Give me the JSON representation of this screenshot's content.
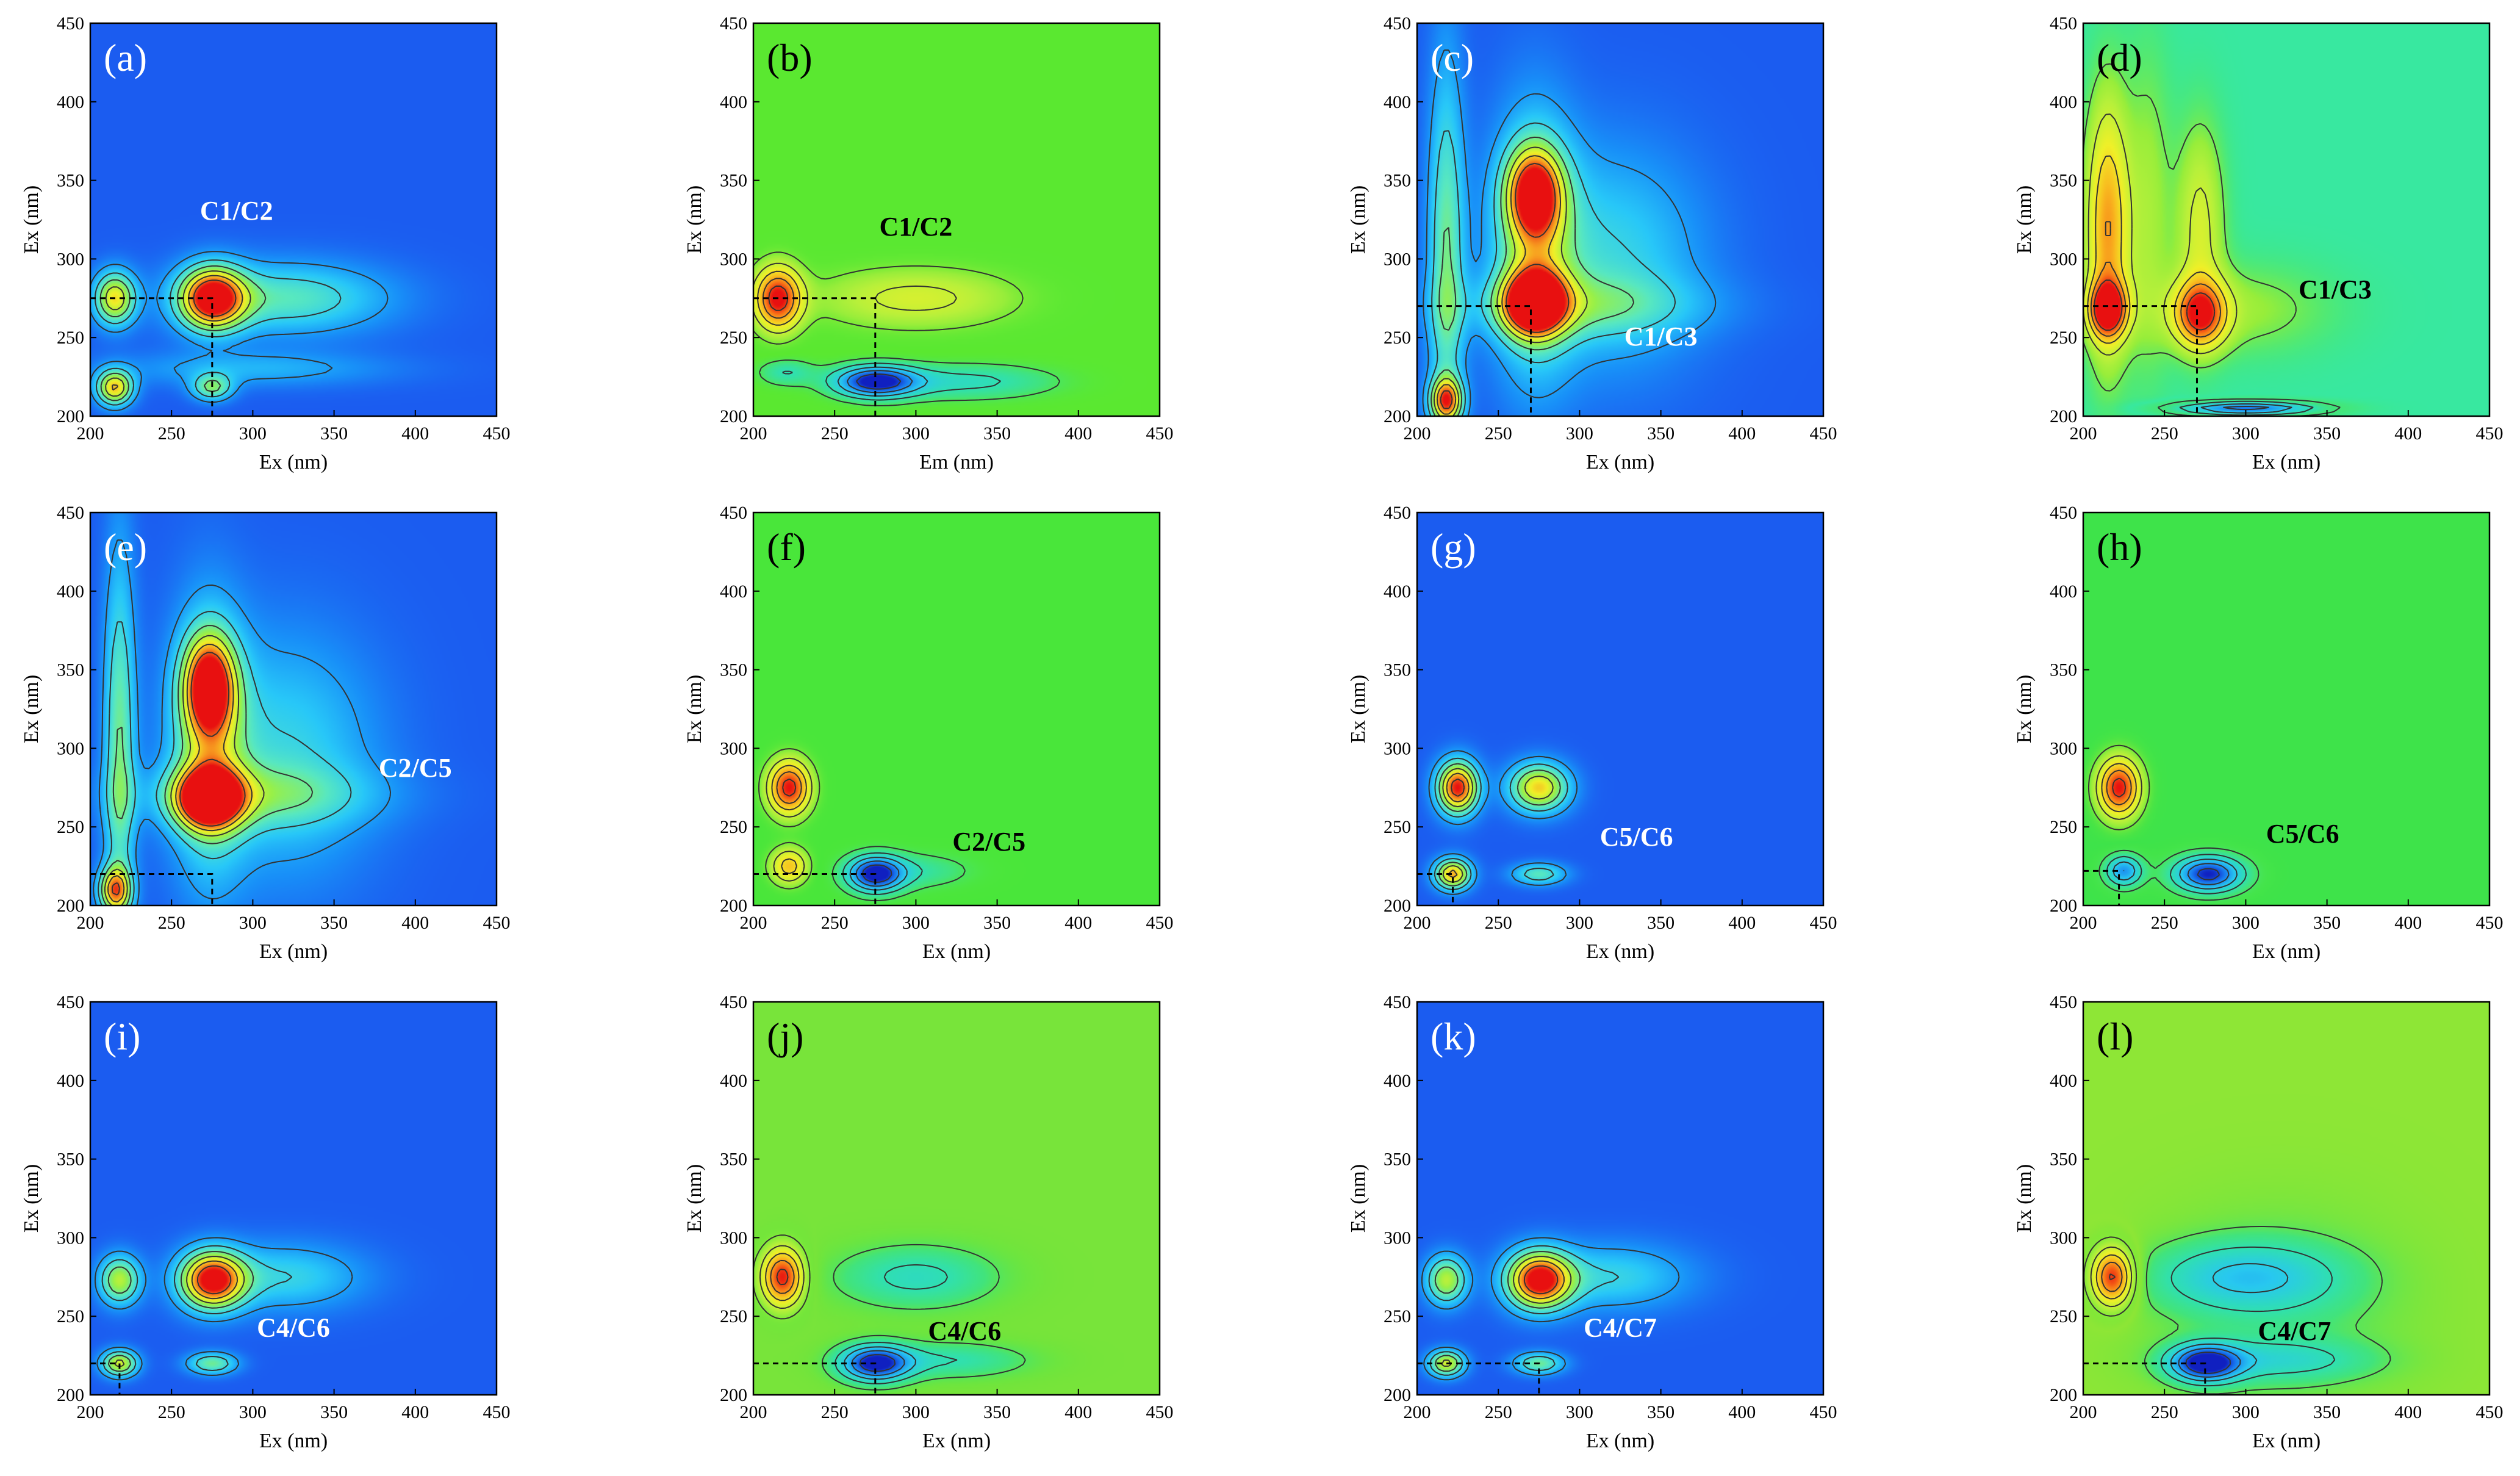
{
  "chart_data": [
    {
      "type": "heatmap",
      "panel": "(a)",
      "xlabel": "Ex (nm)",
      "ylabel": "Ex (nm)",
      "xlim": [
        200,
        450
      ],
      "ylim": [
        200,
        450
      ],
      "xticks": [
        200,
        250,
        300,
        350,
        400,
        450
      ],
      "yticks": [
        200,
        250,
        300,
        350,
        400,
        450
      ],
      "annotation": {
        "text": "C1/C2",
        "x": 290,
        "y": 325,
        "color": "#ffffff"
      },
      "background": "#1b5cf0",
      "peaks": [
        {
          "x": 275,
          "y": 275,
          "sx": 14,
          "sy": 14,
          "v": 1.0
        },
        {
          "x": 215,
          "y": 275,
          "sx": 9,
          "sy": 12,
          "v": 0.7
        },
        {
          "x": 215,
          "y": 218,
          "sx": 8,
          "sy": 8,
          "v": 0.75
        },
        {
          "x": 275,
          "y": 218,
          "sx": 9,
          "sy": 6,
          "v": 0.45
        },
        {
          "x": 320,
          "y": 275,
          "sx": 45,
          "sy": 16,
          "v": 0.4
        },
        {
          "x": 300,
          "y": 230,
          "sx": 60,
          "sy": 8,
          "v": 0.2
        }
      ],
      "guide": {
        "x": 275,
        "y": 275
      }
    },
    {
      "type": "heatmap",
      "panel": "(b)",
      "xlabel": "Em (nm)",
      "ylabel": "Ex (nm)",
      "xlim": [
        200,
        450
      ],
      "ylim": [
        200,
        450
      ],
      "xticks": [
        200,
        250,
        300,
        350,
        400,
        450
      ],
      "yticks": [
        200,
        250,
        300,
        350,
        400,
        450
      ],
      "annotation": {
        "text": "C1/C2",
        "x": 300,
        "y": 315,
        "color": "#000000"
      },
      "background": "#5ae830",
      "peaks": [
        {
          "x": 215,
          "y": 275,
          "sx": 10,
          "sy": 14,
          "v": 1.0
        },
        {
          "x": 300,
          "y": 275,
          "sx": 45,
          "sy": 14,
          "v": 0.35
        },
        {
          "x": 275,
          "y": 222,
          "sx": 18,
          "sy": 7,
          "v": -1.0
        },
        {
          "x": 330,
          "y": 222,
          "sx": 40,
          "sy": 8,
          "v": -0.35
        },
        {
          "x": 220,
          "y": 228,
          "sx": 12,
          "sy": 6,
          "v": -0.3
        }
      ],
      "guide": {
        "x": 275,
        "y": 275
      }
    },
    {
      "type": "heatmap",
      "panel": "(c)",
      "xlabel": "Ex (nm)",
      "ylabel": "Ex (nm)",
      "xlim": [
        200,
        450
      ],
      "ylim": [
        200,
        450
      ],
      "xticks": [
        200,
        250,
        300,
        350,
        400,
        450
      ],
      "yticks": [
        200,
        250,
        300,
        350,
        400,
        450
      ],
      "annotation": {
        "text": "C1/C3",
        "x": 350,
        "y": 245,
        "color": "#ffffff"
      },
      "background": "#1b5cf0",
      "peaks": [
        {
          "x": 272,
          "y": 272,
          "sx": 13,
          "sy": 14,
          "v": 1.0
        },
        {
          "x": 272,
          "y": 342,
          "sx": 12,
          "sy": 20,
          "v": 0.8
        },
        {
          "x": 272,
          "y": 310,
          "sx": 18,
          "sy": 60,
          "v": 0.45
        },
        {
          "x": 218,
          "y": 300,
          "sx": 8,
          "sy": 90,
          "v": 0.45
        },
        {
          "x": 218,
          "y": 210,
          "sx": 7,
          "sy": 10,
          "v": 0.75
        },
        {
          "x": 320,
          "y": 300,
          "sx": 40,
          "sy": 50,
          "v": 0.3
        },
        {
          "x": 300,
          "y": 270,
          "sx": 55,
          "sy": 14,
          "v": 0.25
        }
      ],
      "guide": {
        "x": 270,
        "y": 270
      }
    },
    {
      "type": "heatmap",
      "panel": "(d)",
      "xlabel": "Ex (nm)",
      "ylabel": "Ex (nm)",
      "xlim": [
        200,
        450
      ],
      "ylim": [
        200,
        450
      ],
      "xticks": [
        200,
        250,
        300,
        350,
        400,
        450
      ],
      "yticks": [
        200,
        250,
        300,
        350,
        400,
        450
      ],
      "annotation": {
        "text": "C1/C3",
        "x": 355,
        "y": 275,
        "color": "#000000"
      },
      "background": "#38e8a0",
      "peaks": [
        {
          "x": 215,
          "y": 268,
          "sx": 8,
          "sy": 12,
          "v": 1.0
        },
        {
          "x": 215,
          "y": 320,
          "sx": 9,
          "sy": 55,
          "v": 0.7
        },
        {
          "x": 272,
          "y": 265,
          "sx": 11,
          "sy": 14,
          "v": 0.85
        },
        {
          "x": 272,
          "y": 320,
          "sx": 10,
          "sy": 45,
          "v": 0.35
        },
        {
          "x": 240,
          "y": 330,
          "sx": 10,
          "sy": 70,
          "v": 0.2
        },
        {
          "x": 295,
          "y": 268,
          "sx": 40,
          "sy": 20,
          "v": 0.18
        },
        {
          "x": 300,
          "y": 205,
          "sx": 30,
          "sy": 3,
          "v": -0.8
        }
      ],
      "guide": {
        "x": 270,
        "y": 270
      }
    },
    {
      "type": "heatmap",
      "panel": "(e)",
      "xlabel": "Ex (nm)",
      "ylabel": "Ex (nm)",
      "xlim": [
        200,
        450
      ],
      "ylim": [
        200,
        450
      ],
      "xticks": [
        200,
        250,
        300,
        350,
        400,
        450
      ],
      "yticks": [
        200,
        250,
        300,
        350,
        400,
        450
      ],
      "annotation": {
        "text": "C2/C5",
        "x": 400,
        "y": 282,
        "color": "#ffffff"
      },
      "background": "#1b5cf0",
      "peaks": [
        {
          "x": 273,
          "y": 268,
          "sx": 14,
          "sy": 13,
          "v": 1.0
        },
        {
          "x": 273,
          "y": 340,
          "sx": 11,
          "sy": 22,
          "v": 0.85
        },
        {
          "x": 273,
          "y": 305,
          "sx": 16,
          "sy": 60,
          "v": 0.45
        },
        {
          "x": 218,
          "y": 300,
          "sx": 7,
          "sy": 90,
          "v": 0.45
        },
        {
          "x": 215,
          "y": 210,
          "sx": 7,
          "sy": 10,
          "v": 0.7
        },
        {
          "x": 320,
          "y": 295,
          "sx": 40,
          "sy": 55,
          "v": 0.3
        },
        {
          "x": 300,
          "y": 270,
          "sx": 55,
          "sy": 14,
          "v": 0.25
        }
      ],
      "guide": {
        "x": 275,
        "y": 220
      }
    },
    {
      "type": "heatmap",
      "panel": "(f)",
      "xlabel": "Ex (nm)",
      "ylabel": "Ex (nm)",
      "xlim": [
        200,
        450
      ],
      "ylim": [
        200,
        450
      ],
      "xticks": [
        200,
        250,
        300,
        350,
        400,
        450
      ],
      "yticks": [
        200,
        250,
        300,
        350,
        400,
        450
      ],
      "annotation": {
        "text": "C2/C5",
        "x": 345,
        "y": 235,
        "color": "#000000"
      },
      "background": "#49e63a",
      "peaks": [
        {
          "x": 222,
          "y": 275,
          "sx": 9,
          "sy": 12,
          "v": 1.0
        },
        {
          "x": 222,
          "y": 225,
          "sx": 8,
          "sy": 8,
          "v": 0.6
        },
        {
          "x": 275,
          "y": 220,
          "sx": 12,
          "sy": 8,
          "v": -1.0
        },
        {
          "x": 300,
          "y": 222,
          "sx": 25,
          "sy": 8,
          "v": -0.25
        }
      ],
      "guide": {
        "x": 275,
        "y": 220
      }
    },
    {
      "type": "heatmap",
      "panel": "(g)",
      "xlabel": "Ex (nm)",
      "ylabel": "Ex (nm)",
      "xlim": [
        200,
        450
      ],
      "ylim": [
        200,
        450
      ],
      "xticks": [
        200,
        250,
        300,
        350,
        400,
        450
      ],
      "yticks": [
        200,
        250,
        300,
        350,
        400,
        450
      ],
      "annotation": {
        "text": "C5/C6",
        "x": 335,
        "y": 238,
        "color": "#ffffff"
      },
      "background": "#1b5cf0",
      "peaks": [
        {
          "x": 225,
          "y": 275,
          "sx": 9,
          "sy": 12,
          "v": 1.0
        },
        {
          "x": 275,
          "y": 275,
          "sx": 13,
          "sy": 11,
          "v": 0.75
        },
        {
          "x": 222,
          "y": 220,
          "sx": 8,
          "sy": 7,
          "v": 0.8
        },
        {
          "x": 275,
          "y": 220,
          "sx": 12,
          "sy": 5,
          "v": 0.4
        }
      ],
      "guide": {
        "x": 222,
        "y": 220
      }
    },
    {
      "type": "heatmap",
      "panel": "(h)",
      "xlabel": "Ex (nm)",
      "ylabel": "Ex (nm)",
      "xlim": [
        200,
        450
      ],
      "ylim": [
        200,
        450
      ],
      "xticks": [
        200,
        250,
        300,
        350,
        400,
        450
      ],
      "yticks": [
        200,
        250,
        300,
        350,
        400,
        450
      ],
      "annotation": {
        "text": "C5/C6",
        "x": 335,
        "y": 240,
        "color": "#000000"
      },
      "background": "#3ee34a",
      "peaks": [
        {
          "x": 222,
          "y": 275,
          "sx": 9,
          "sy": 13,
          "v": 1.0
        },
        {
          "x": 225,
          "y": 222,
          "sx": 8,
          "sy": 7,
          "v": -0.7
        },
        {
          "x": 277,
          "y": 220,
          "sx": 15,
          "sy": 8,
          "v": -1.0
        }
      ],
      "guide": {
        "x": 222,
        "y": 222
      }
    },
    {
      "type": "heatmap",
      "panel": "(i)",
      "xlabel": "Ex (nm)",
      "ylabel": "Ex (nm)",
      "xlim": [
        200,
        450
      ],
      "ylim": [
        200,
        450
      ],
      "xticks": [
        200,
        250,
        300,
        350,
        400,
        450
      ],
      "yticks": [
        200,
        250,
        300,
        350,
        400,
        450
      ],
      "annotation": {
        "text": "C4/C6",
        "x": 325,
        "y": 237,
        "color": "#ffffff"
      },
      "background": "#1b5cf0",
      "peaks": [
        {
          "x": 275,
          "y": 273,
          "sx": 14,
          "sy": 13,
          "v": 1.0
        },
        {
          "x": 218,
          "y": 273,
          "sx": 9,
          "sy": 11,
          "v": 0.6
        },
        {
          "x": 218,
          "y": 220,
          "sx": 8,
          "sy": 6,
          "v": 0.65
        },
        {
          "x": 275,
          "y": 220,
          "sx": 11,
          "sy": 5,
          "v": 0.45
        },
        {
          "x": 320,
          "y": 275,
          "sx": 35,
          "sy": 15,
          "v": 0.3
        }
      ],
      "guide": {
        "x": 218,
        "y": 220
      }
    },
    {
      "type": "heatmap",
      "panel": "(j)",
      "xlabel": "Ex (nm)",
      "ylabel": "Ex (nm)",
      "xlim": [
        200,
        450
      ],
      "ylim": [
        200,
        450
      ],
      "xticks": [
        200,
        250,
        300,
        350,
        400,
        450
      ],
      "yticks": [
        200,
        250,
        300,
        350,
        400,
        450
      ],
      "annotation": {
        "text": "C4/C6",
        "x": 330,
        "y": 235,
        "color": "#000000"
      },
      "background": "#78e43a",
      "peaks": [
        {
          "x": 218,
          "y": 275,
          "sx": 9,
          "sy": 13,
          "v": 1.0
        },
        {
          "x": 300,
          "y": 275,
          "sx": 35,
          "sy": 14,
          "v": -0.35
        },
        {
          "x": 275,
          "y": 220,
          "sx": 15,
          "sy": 8,
          "v": -1.0
        },
        {
          "x": 320,
          "y": 222,
          "sx": 35,
          "sy": 8,
          "v": -0.3
        }
      ],
      "guide": {
        "x": 275,
        "y": 220
      }
    },
    {
      "type": "heatmap",
      "panel": "(k)",
      "xlabel": "Ex (nm)",
      "ylabel": "Ex (nm)",
      "xlim": [
        200,
        450
      ],
      "ylim": [
        200,
        450
      ],
      "xticks": [
        200,
        250,
        300,
        350,
        400,
        450
      ],
      "yticks": [
        200,
        250,
        300,
        350,
        400,
        450
      ],
      "annotation": {
        "text": "C4/C7",
        "x": 325,
        "y": 237,
        "color": "#ffffff"
      },
      "background": "#1b5cf0",
      "peaks": [
        {
          "x": 275,
          "y": 273,
          "sx": 14,
          "sy": 13,
          "v": 1.0
        },
        {
          "x": 218,
          "y": 273,
          "sx": 9,
          "sy": 11,
          "v": 0.6
        },
        {
          "x": 218,
          "y": 220,
          "sx": 8,
          "sy": 6,
          "v": 0.65
        },
        {
          "x": 275,
          "y": 220,
          "sx": 11,
          "sy": 5,
          "v": 0.45
        },
        {
          "x": 320,
          "y": 275,
          "sx": 35,
          "sy": 15,
          "v": 0.3
        }
      ],
      "guide": {
        "x": 275,
        "y": 220
      }
    },
    {
      "type": "heatmap",
      "panel": "(l)",
      "xlabel": "Ex (nm)",
      "ylabel": "Ex (nm)",
      "xlim": [
        200,
        450
      ],
      "ylim": [
        200,
        450
      ],
      "xticks": [
        200,
        250,
        300,
        350,
        400,
        450
      ],
      "yticks": [
        200,
        250,
        300,
        350,
        400,
        450
      ],
      "annotation": {
        "text": "C4/C7",
        "x": 330,
        "y": 235,
        "color": "#000000"
      },
      "background": "#8ee636",
      "peaks": [
        {
          "x": 218,
          "y": 275,
          "sx": 9,
          "sy": 13,
          "v": 1.0
        },
        {
          "x": 300,
          "y": 275,
          "sx": 40,
          "sy": 15,
          "v": -0.45
        },
        {
          "x": 320,
          "y": 255,
          "sx": 55,
          "sy": 45,
          "v": -0.15
        },
        {
          "x": 275,
          "y": 220,
          "sx": 15,
          "sy": 8,
          "v": -1.0
        },
        {
          "x": 320,
          "y": 222,
          "sx": 40,
          "sy": 9,
          "v": -0.3
        }
      ],
      "guide": {
        "x": 275,
        "y": 220
      }
    }
  ]
}
